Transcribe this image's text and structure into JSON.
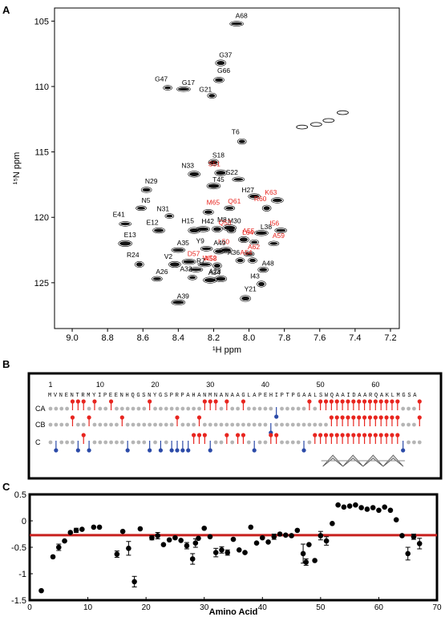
{
  "panels": {
    "a": "A",
    "b": "B",
    "c": "C"
  },
  "chart_data": [
    {
      "type": "scatter",
      "panel": "A",
      "xlabel": "¹H ppm",
      "ylabel": "¹⁵N ppm",
      "xlim": [
        9.1,
        7.15
      ],
      "ylim": [
        128.5,
        104
      ],
      "xticks": [
        9.0,
        8.8,
        8.6,
        8.4,
        8.2,
        8.0,
        7.8,
        7.6,
        7.4,
        7.2
      ],
      "xtick_labels": [
        "9.0",
        "8.8",
        "8.6",
        "8.4",
        "8.2",
        "8.0",
        "7.8",
        "7.6",
        "7.4",
        "7.2"
      ],
      "yticks": [
        105,
        110,
        115,
        120,
        125
      ],
      "ytick_labels": [
        "105",
        "110",
        "115",
        "120",
        "125"
      ],
      "label_colors": {
        "black": "#000000",
        "red": "#e8251f"
      },
      "peaks": [
        {
          "label": "A68",
          "h": 8.07,
          "n": 105.2,
          "color": "black"
        },
        {
          "label": "G37",
          "h": 8.16,
          "n": 108.2,
          "color": "black"
        },
        {
          "label": "G47",
          "h": 8.46,
          "n": 110.1,
          "color": "black"
        },
        {
          "label": "G17",
          "h": 8.37,
          "n": 110.2,
          "color": "black"
        },
        {
          "label": "G66",
          "h": 8.17,
          "n": 109.5,
          "color": "black"
        },
        {
          "label": "G21",
          "h": 8.21,
          "n": 110.7,
          "color": "black"
        },
        {
          "label": "T6",
          "h": 8.04,
          "n": 114.2,
          "color": "black"
        },
        {
          "label": "S18",
          "h": 8.2,
          "n": 115.8,
          "color": "black"
        },
        {
          "label": "S51",
          "h": 8.16,
          "n": 116.6,
          "color": "red"
        },
        {
          "label": "N33",
          "h": 8.31,
          "n": 116.7,
          "color": "black"
        },
        {
          "label": "S22",
          "h": 8.06,
          "n": 117.1,
          "color": "black"
        },
        {
          "label": "T45",
          "h": 8.2,
          "n": 117.6,
          "color": "black"
        },
        {
          "label": "N29",
          "h": 8.58,
          "n": 117.9,
          "color": "black"
        },
        {
          "label": "H27",
          "h": 7.97,
          "n": 118.4,
          "color": "black"
        },
        {
          "label": "K63",
          "h": 7.84,
          "n": 118.7,
          "color": "red"
        },
        {
          "label": "N5",
          "h": 8.61,
          "n": 119.3,
          "color": "black"
        },
        {
          "label": "N31",
          "h": 8.45,
          "n": 119.9,
          "color": "black"
        },
        {
          "label": "R60",
          "h": 7.9,
          "n": 119.3,
          "color": "red"
        },
        {
          "label": "Q61",
          "h": 8.11,
          "n": 119.3,
          "color": "red"
        },
        {
          "label": "M65",
          "h": 8.23,
          "n": 119.6,
          "color": "red"
        },
        {
          "label": "E41",
          "h": 8.7,
          "n": 120.5,
          "color": "black"
        },
        {
          "label": "E12",
          "h": 8.51,
          "n": 121.0,
          "color": "black"
        },
        {
          "label": "H15",
          "h": 8.31,
          "n": 121.0,
          "color": "black"
        },
        {
          "label": "H42",
          "h": 8.26,
          "n": 120.9,
          "color": "black"
        },
        {
          "label": "M8",
          "h": 8.18,
          "n": 120.9,
          "color": "black"
        },
        {
          "label": "M30",
          "h": 8.11,
          "n": 120.8,
          "color": "black"
        },
        {
          "label": "Q53",
          "h": 8.1,
          "n": 121.0,
          "color": "red"
        },
        {
          "label": "L38",
          "h": 7.93,
          "n": 121.2,
          "color": "black"
        },
        {
          "label": "I56",
          "h": 7.82,
          "n": 121.0,
          "color": "red"
        },
        {
          "label": "A55",
          "h": 8.03,
          "n": 121.7,
          "color": "red"
        },
        {
          "label": "L64",
          "h": 7.97,
          "n": 121.9,
          "color": "red"
        },
        {
          "label": "A59",
          "h": 7.86,
          "n": 122.0,
          "color": "red"
        },
        {
          "label": "E13",
          "h": 8.7,
          "n": 122.0,
          "color": "black"
        },
        {
          "label": "A35",
          "h": 8.4,
          "n": 122.5,
          "color": "black"
        },
        {
          "label": "Y9",
          "h": 8.24,
          "n": 122.4,
          "color": "black"
        },
        {
          "label": "L50",
          "h": 8.17,
          "n": 122.6,
          "color": "red"
        },
        {
          "label": "A49",
          "h": 8.13,
          "n": 122.5,
          "color": "black"
        },
        {
          "label": "A62",
          "h": 8.0,
          "n": 122.8,
          "color": "red"
        },
        {
          "label": "R24",
          "h": 8.62,
          "n": 123.6,
          "color": "black"
        },
        {
          "label": "V2",
          "h": 8.42,
          "n": 123.6,
          "color": "black"
        },
        {
          "label": "D57",
          "h": 8.34,
          "n": 123.4,
          "color": "red"
        },
        {
          "label": "A36",
          "h": 8.05,
          "n": 123.3,
          "color": "black"
        },
        {
          "label": "A54",
          "h": 7.98,
          "n": 123.3,
          "color": "red"
        },
        {
          "label": "W52",
          "h": 8.25,
          "n": 123.6,
          "color": "red"
        },
        {
          "label": "A58",
          "h": 8.18,
          "n": 123.7,
          "color": "red"
        },
        {
          "label": "R7",
          "h": 8.3,
          "n": 124.0,
          "color": "black"
        },
        {
          "label": "A48",
          "h": 7.92,
          "n": 124.0,
          "color": "black"
        },
        {
          "label": "A26",
          "h": 8.52,
          "n": 124.7,
          "color": "black"
        },
        {
          "label": "A32",
          "h": 8.32,
          "n": 124.6,
          "color": "black"
        },
        {
          "label": "A28",
          "h": 8.22,
          "n": 124.8,
          "color": "black"
        },
        {
          "label": "A34",
          "h": 8.16,
          "n": 124.7,
          "color": "black"
        },
        {
          "label": "I43",
          "h": 7.93,
          "n": 125.1,
          "color": "black"
        },
        {
          "label": "A39",
          "h": 8.4,
          "n": 126.5,
          "color": "black"
        },
        {
          "label": "Y21",
          "h": 8.02,
          "n": 126.2,
          "color": "black"
        }
      ]
    },
    {
      "type": "table",
      "panel": "B",
      "sequence_numbers": [
        {
          "label": "1",
          "residue": 1
        },
        {
          "label": "10",
          "residue": 10
        },
        {
          "label": "20",
          "residue": 20
        },
        {
          "label": "30",
          "residue": 30
        },
        {
          "label": "40",
          "residue": 40
        },
        {
          "label": "50",
          "residue": 50
        },
        {
          "label": "60",
          "residue": 60
        }
      ],
      "sequence": "MVNENTRMYIPEENHQGSNYGSPRPAHANMNANAAGLAPEHIPTPGAALSWQAAIDAARQAKLMGSA",
      "rows": [
        "CA",
        "CB",
        "C"
      ],
      "legend_colors": {
        "positive": "#e8251f",
        "negative": "#2b4aa8",
        "neutral": "#b5b5b5"
      },
      "CA": {
        "up": [
          5,
          6,
          7,
          9,
          12,
          19,
          29,
          30,
          31,
          33,
          36,
          48,
          50,
          51,
          52,
          53,
          54,
          55,
          56,
          57,
          58,
          59,
          60,
          61,
          62,
          63,
          64,
          68
        ],
        "down": [
          42
        ]
      },
      "CB": {
        "up": [
          5,
          8,
          14,
          24,
          28,
          52,
          53,
          54,
          55,
          56,
          57,
          58,
          59,
          60,
          61,
          62,
          63,
          64,
          68
        ],
        "down": [
          41
        ]
      },
      "C": {
        "up": [
          7,
          27,
          28,
          29,
          33,
          35,
          36,
          41,
          42,
          49,
          50,
          51,
          52,
          53,
          54,
          55,
          56,
          57,
          58,
          59,
          60,
          61,
          62,
          63,
          64
        ],
        "down": [
          2,
          6,
          8,
          15,
          19,
          21,
          23,
          24,
          25,
          26,
          30,
          33,
          36,
          38,
          42,
          47,
          50,
          65
        ]
      },
      "helix": {
        "start": 50,
        "end": 63
      }
    },
    {
      "type": "scatter",
      "panel": "C",
      "xlabel": "Amino Acid",
      "ylabel": "",
      "xlim": [
        0,
        70
      ],
      "ylim": [
        -1.5,
        0.5
      ],
      "xticks": [
        0,
        10,
        20,
        30,
        40,
        50,
        60,
        70
      ],
      "xtick_labels": [
        "0",
        "10",
        "20",
        "30",
        "40",
        "50",
        "60",
        "70"
      ],
      "yticks": [
        0.5,
        0,
        -0.5,
        -1,
        -1.5
      ],
      "ytick_labels": [
        "0.5",
        "0",
        "-0.5",
        "-1",
        "-1.5"
      ],
      "threshold": -0.27,
      "threshold_color": "#c8201e",
      "points": [
        {
          "x": 2,
          "y": -1.32,
          "err": 0
        },
        {
          "x": 4,
          "y": -0.68,
          "err": 0
        },
        {
          "x": 5,
          "y": -0.5,
          "err": 0.06
        },
        {
          "x": 6,
          "y": -0.38,
          "err": 0
        },
        {
          "x": 7,
          "y": -0.22,
          "err": 0
        },
        {
          "x": 8,
          "y": -0.18,
          "err": 0.04
        },
        {
          "x": 9,
          "y": -0.16,
          "err": 0
        },
        {
          "x": 11,
          "y": -0.12,
          "err": 0
        },
        {
          "x": 12,
          "y": -0.12,
          "err": 0
        },
        {
          "x": 15,
          "y": -0.63,
          "err": 0.06
        },
        {
          "x": 16,
          "y": -0.2,
          "err": 0
        },
        {
          "x": 17,
          "y": -0.52,
          "err": 0.13
        },
        {
          "x": 18,
          "y": -1.15,
          "err": 0.1
        },
        {
          "x": 19,
          "y": -0.15,
          "err": 0
        },
        {
          "x": 21,
          "y": -0.32,
          "err": 0.04
        },
        {
          "x": 22,
          "y": -0.28,
          "err": 0.06
        },
        {
          "x": 23,
          "y": -0.45,
          "err": 0
        },
        {
          "x": 24,
          "y": -0.36,
          "err": 0
        },
        {
          "x": 25,
          "y": -0.32,
          "err": 0
        },
        {
          "x": 26,
          "y": -0.37,
          "err": 0
        },
        {
          "x": 27,
          "y": -0.47,
          "err": 0.06
        },
        {
          "x": 28,
          "y": -0.72,
          "err": 0.1
        },
        {
          "x": 28.5,
          "y": -0.42,
          "err": 0.08
        },
        {
          "x": 29,
          "y": -0.33,
          "err": 0
        },
        {
          "x": 30,
          "y": -0.14,
          "err": 0
        },
        {
          "x": 31,
          "y": -0.3,
          "err": 0
        },
        {
          "x": 32,
          "y": -0.6,
          "err": 0.08
        },
        {
          "x": 33,
          "y": -0.55,
          "err": 0.06
        },
        {
          "x": 34,
          "y": -0.6,
          "err": 0.05
        },
        {
          "x": 35,
          "y": -0.35,
          "err": 0
        },
        {
          "x": 36,
          "y": -0.55,
          "err": 0
        },
        {
          "x": 37,
          "y": -0.6,
          "err": 0
        },
        {
          "x": 38,
          "y": -0.12,
          "err": 0
        },
        {
          "x": 39,
          "y": -0.42,
          "err": 0
        },
        {
          "x": 40,
          "y": -0.32,
          "err": 0
        },
        {
          "x": 41,
          "y": -0.4,
          "err": 0
        },
        {
          "x": 42,
          "y": -0.3,
          "err": 0.05
        },
        {
          "x": 43,
          "y": -0.25,
          "err": 0
        },
        {
          "x": 44,
          "y": -0.27,
          "err": 0
        },
        {
          "x": 45,
          "y": -0.28,
          "err": 0
        },
        {
          "x": 46,
          "y": -0.18,
          "err": 0
        },
        {
          "x": 47,
          "y": -0.62,
          "err": 0.18
        },
        {
          "x": 47.5,
          "y": -0.78,
          "err": 0.06
        },
        {
          "x": 48,
          "y": -0.45,
          "err": 0
        },
        {
          "x": 49,
          "y": -0.75,
          "err": 0
        },
        {
          "x": 50,
          "y": -0.28,
          "err": 0.08
        },
        {
          "x": 51,
          "y": -0.38,
          "err": 0.08
        },
        {
          "x": 52,
          "y": -0.05,
          "err": 0
        },
        {
          "x": 53,
          "y": 0.3,
          "err": 0
        },
        {
          "x": 54,
          "y": 0.26,
          "err": 0
        },
        {
          "x": 55,
          "y": 0.28,
          "err": 0
        },
        {
          "x": 56,
          "y": 0.3,
          "err": 0
        },
        {
          "x": 57,
          "y": 0.25,
          "err": 0
        },
        {
          "x": 58,
          "y": 0.22,
          "err": 0
        },
        {
          "x": 59,
          "y": 0.25,
          "err": 0
        },
        {
          "x": 60,
          "y": 0.2,
          "err": 0
        },
        {
          "x": 61,
          "y": 0.26,
          "err": 0
        },
        {
          "x": 62,
          "y": 0.2,
          "err": 0
        },
        {
          "x": 63,
          "y": 0.02,
          "err": 0
        },
        {
          "x": 64,
          "y": -0.28,
          "err": 0
        },
        {
          "x": 65,
          "y": -0.62,
          "err": 0.12
        },
        {
          "x": 66,
          "y": -0.3,
          "err": 0.05
        },
        {
          "x": 67,
          "y": -0.43,
          "err": 0.1
        }
      ]
    }
  ]
}
